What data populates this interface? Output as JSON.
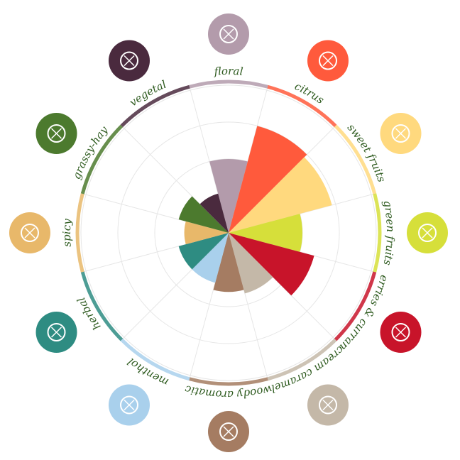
{
  "chart_data": {
    "type": "polar",
    "categories": [
      "floral",
      "citrus",
      "sweet fruits",
      "green fruits",
      "berries & currant",
      "cream caramel",
      "woody aromatic",
      "menthol",
      "herbal",
      "spicy",
      "grassy-hay",
      "vegetal"
    ],
    "values": [
      2,
      3,
      2.9,
      2,
      2.4,
      1.7,
      1.6,
      1.4,
      1.4,
      1.2,
      1.4,
      1.1
    ],
    "colors": [
      "#b39bab",
      "#ff5a3c",
      "#ffd97e",
      "#d6df3a",
      "#c8142a",
      "#c4b8a8",
      "#a57c62",
      "#a9d0ec",
      "#2e8c82",
      "#e8b86a",
      "#4c7a2e",
      "#4a2a3e"
    ],
    "ylim": [
      0,
      4
    ],
    "yticks": [
      1,
      2,
      3,
      4
    ],
    "grid": true
  }
}
